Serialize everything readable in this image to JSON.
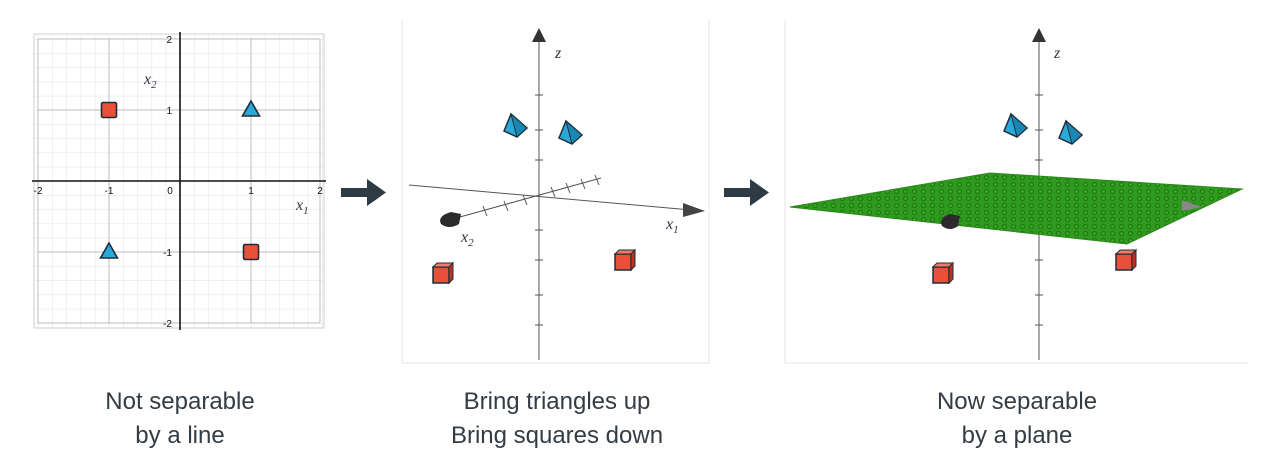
{
  "panels": [
    {
      "caption_line1": "Not separable",
      "caption_line2": "by a line",
      "x_ticks": [
        "-2",
        "-1",
        "0",
        "1",
        "2"
      ],
      "y_ticks": [
        "2",
        "1",
        "-1",
        "-2"
      ],
      "x_label": "x",
      "x_label_sub": "1",
      "y_label": "x",
      "y_label_sub": "2"
    },
    {
      "caption_line1": "Bring triangles up",
      "caption_line2": "Bring squares down",
      "z_label": "z",
      "x1_label": "x",
      "x1_label_sub": "1",
      "x2_label": "x",
      "x2_label_sub": "2"
    },
    {
      "caption_line1": "Now separable",
      "caption_line2": "by a plane",
      "z_label": "z"
    }
  ],
  "colors": {
    "triangle": "#2aa8d8",
    "square": "#e8503a",
    "plane": "#2e9a1e",
    "arrow": "#2e3b45"
  },
  "icons": [
    "right-arrow-icon",
    "right-arrow-icon"
  ],
  "chart_data": {
    "type": "scatter",
    "series": [
      {
        "name": "",
        "marker": "triangle",
        "points": [
          [
            1,
            1
          ],
          [
            -1,
            -1
          ]
        ]
      },
      {
        "name": "",
        "marker": "square",
        "points": [
          [
            -1,
            1
          ],
          [
            1,
            -1
          ]
        ]
      }
    ],
    "xlim": [
      -2,
      2
    ],
    "ylim": [
      -2,
      2
    ],
    "grid": true
  }
}
